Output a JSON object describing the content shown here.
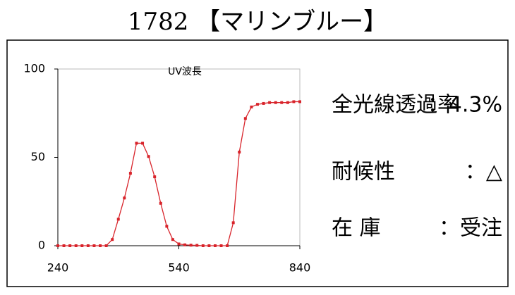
{
  "title": "1782 【マリンブルー】",
  "chart_data": {
    "type": "line",
    "title": "UV波長",
    "x": [
      240,
      255,
      270,
      285,
      300,
      315,
      330,
      345,
      360,
      375,
      390,
      405,
      420,
      435,
      450,
      465,
      480,
      495,
      510,
      525,
      540,
      555,
      570,
      585,
      600,
      615,
      630,
      645,
      660,
      675,
      690,
      705,
      720,
      735,
      750,
      765,
      780,
      795,
      810,
      825,
      840
    ],
    "series": [
      {
        "color": "#d8232a",
        "values": [
          0,
          0,
          0,
          0,
          0,
          0,
          0,
          0,
          0,
          3.5,
          15,
          27,
          41,
          58,
          58,
          50.5,
          39,
          24,
          11,
          3.5,
          1,
          0.5,
          0.3,
          0.2,
          0,
          0,
          0,
          0,
          0,
          13,
          53,
          72,
          78.5,
          80,
          80.5,
          81,
          81,
          81,
          81,
          81.5,
          81.5
        ]
      }
    ],
    "xlim": [
      240,
      840
    ],
    "xticks": [
      240,
      540,
      840
    ],
    "ylim": [
      0,
      100
    ],
    "yticks": [
      0,
      50,
      100
    ]
  },
  "specs": [
    {
      "label": "全光線透過率",
      "value": "：4.3%"
    },
    {
      "label": "耐候性",
      "value": "：△"
    },
    {
      "label": "在 庫",
      "value": "：受注"
    }
  ]
}
